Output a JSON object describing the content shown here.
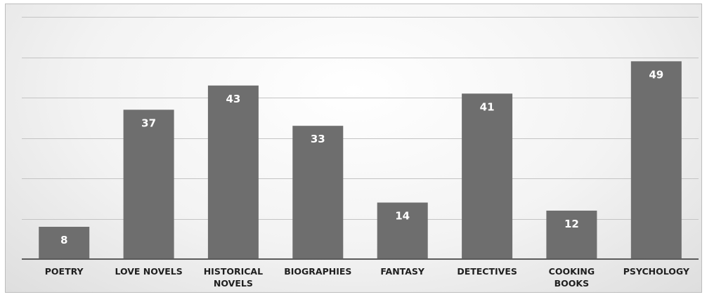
{
  "chart_data": {
    "type": "bar",
    "categories": [
      "POETRY",
      "LOVE NOVELS",
      "HISTORICAL NOVELS",
      "BIOGRAPHIES",
      "FANTASY",
      "DETECTIVES",
      "COOKING BOOKS",
      "PSYCHOLOGY"
    ],
    "category_lines": [
      [
        "POETRY"
      ],
      [
        "LOVE NOVELS"
      ],
      [
        "HISTORICAL",
        "NOVELS"
      ],
      [
        "BIOGRAPHIES"
      ],
      [
        "FANTASY"
      ],
      [
        "DETECTIVES"
      ],
      [
        "COOKING",
        "BOOKS"
      ],
      [
        "PSYCHOLOGY"
      ]
    ],
    "values": [
      8,
      37,
      43,
      33,
      14,
      41,
      12,
      49
    ],
    "data_labels": [
      "8",
      "37",
      "43",
      "33",
      "14",
      "41",
      "12",
      "49"
    ],
    "title": "",
    "xlabel": "",
    "ylabel": "",
    "ylim": [
      0,
      60
    ],
    "gridline_step": 10,
    "grid": true,
    "legend": "none",
    "colors": {
      "bar": "#6e6e6e",
      "label": "#ffffff",
      "grid": "#c4c4c4",
      "axis_text": "#1f1f1f"
    }
  }
}
